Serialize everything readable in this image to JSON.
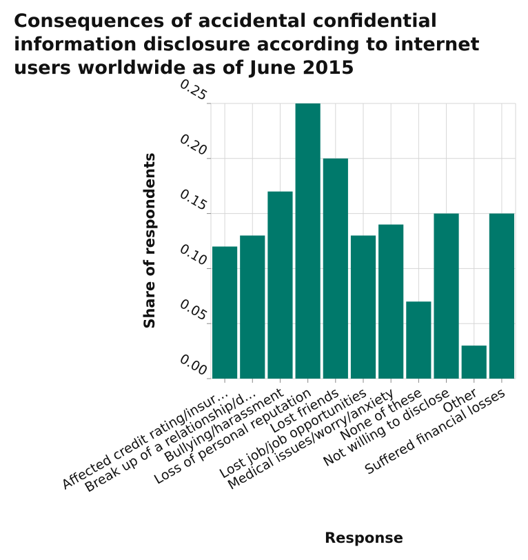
{
  "chart_data": {
    "type": "bar",
    "title": "Consequences of accidental confidential information disclosure according to internet users worldwide as of June 2015",
    "xlabel": "Response",
    "ylabel": "Share of respondents",
    "categories": [
      "Affected credit rating/insur…",
      "Break up of a relationship/d…",
      "Bullying/harassment",
      "Loss of personal reputation",
      "Lost friends",
      "Lost job/job opportunities",
      "Medical issues/worry/anxiety",
      "None of these",
      "Not willing to disclose",
      "Other",
      "Suffered financial losses"
    ],
    "values": [
      0.12,
      0.13,
      0.17,
      0.25,
      0.2,
      0.13,
      0.14,
      0.07,
      0.15,
      0.03,
      0.15
    ],
    "yticks": [
      "0.00",
      "0.05",
      "0.10",
      "0.15",
      "0.20",
      "0.25"
    ],
    "ylim": [
      0,
      0.25
    ],
    "grid": true,
    "bar_color": "#00796b",
    "grid_color": "#d6d6d6"
  }
}
